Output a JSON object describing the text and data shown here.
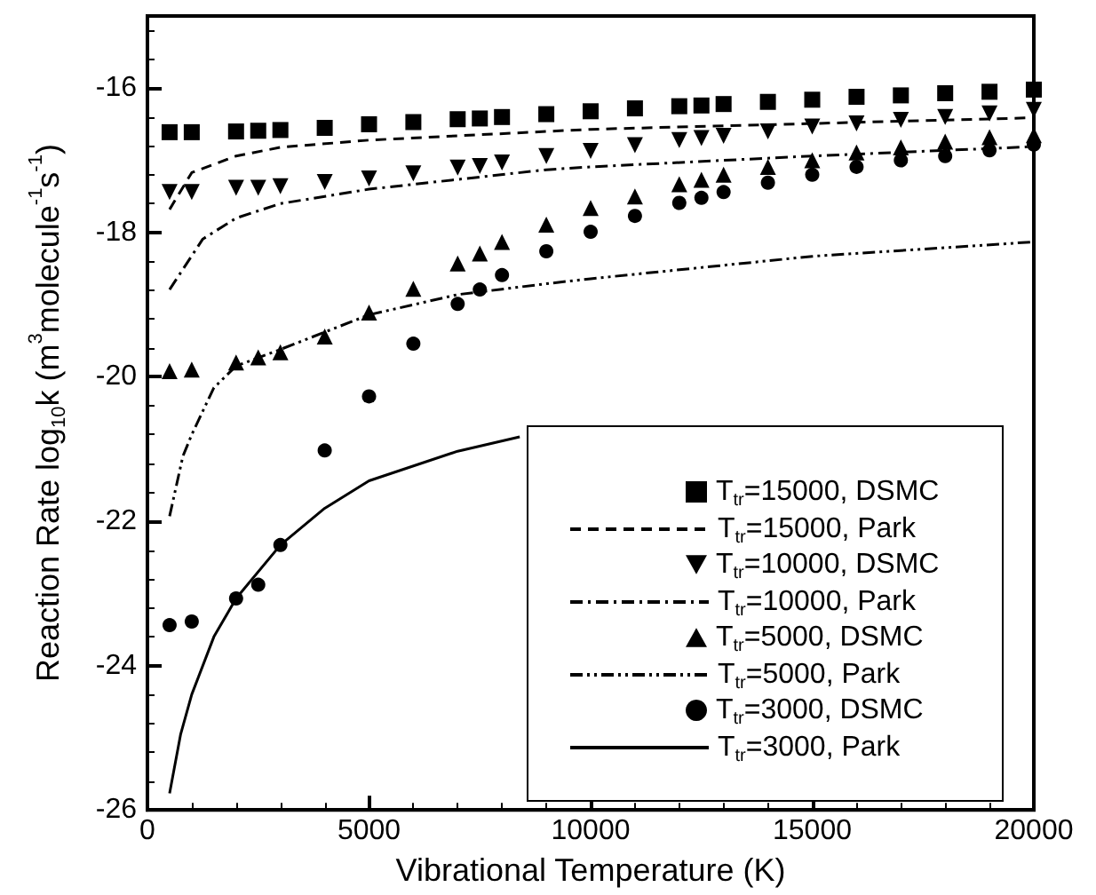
{
  "chart_data": {
    "type": "line",
    "xlabel": "Vibrational Temperature (K)",
    "ylabel": "Reaction Rate log$_{10}$k (m$^{3}$molecule$^{-1}$s$^{-1}$)",
    "xlim": [
      0,
      20000
    ],
    "xticks": [
      0,
      5000,
      10000,
      15000,
      20000
    ],
    "ylim": [
      -26,
      -15
    ],
    "yticks": [
      -26,
      -24,
      -22,
      -20,
      -18,
      -16
    ],
    "grid": false,
    "legend": "bottom right",
    "series": [
      {
        "name": "T$_{tr}$=15000, DSMC",
        "type": "scatter",
        "marker": "square",
        "color": "#000000",
        "x": [
          500,
          1000,
          2000,
          2500,
          3000,
          4000,
          5000,
          6000,
          7000,
          7500,
          8000,
          9000,
          10000,
          11000,
          12000,
          12500,
          13000,
          14000,
          15000,
          16000,
          17000,
          18000,
          19000,
          20000
        ],
        "values": [
          -16.61,
          -16.61,
          -16.6,
          -16.59,
          -16.58,
          -16.55,
          -16.5,
          -16.47,
          -16.43,
          -16.42,
          -16.4,
          -16.36,
          -16.32,
          -16.28,
          -16.25,
          -16.24,
          -16.22,
          -16.19,
          -16.16,
          -16.12,
          -16.1,
          -16.07,
          -16.05,
          -16.02
        ]
      },
      {
        "name": "T$_{tr}$=15000, Park",
        "line_style": "dashed",
        "color": "#000000",
        "x": [
          500,
          1000,
          2000,
          3000,
          5000,
          9000,
          10000,
          15000,
          20000
        ],
        "values": [
          -17.68,
          -17.17,
          -16.94,
          -16.82,
          -16.72,
          -16.6,
          -16.57,
          -16.49,
          -16.41
        ]
      },
      {
        "name": "T$_{tr}$=10000, DSMC",
        "type": "scatter",
        "marker": "triangle-down",
        "color": "#000000",
        "x": [
          500,
          1000,
          2000,
          2500,
          3000,
          4000,
          5000,
          6000,
          7000,
          7500,
          8000,
          9000,
          10000,
          11000,
          12000,
          12500,
          13000,
          14000,
          15000,
          16000,
          17000,
          18000,
          19000,
          20000
        ],
        "values": [
          -17.44,
          -17.44,
          -17.38,
          -17.38,
          -17.36,
          -17.3,
          -17.25,
          -17.18,
          -17.1,
          -17.08,
          -17.03,
          -16.94,
          -16.87,
          -16.79,
          -16.72,
          -16.69,
          -16.66,
          -16.6,
          -16.53,
          -16.49,
          -16.44,
          -16.4,
          -16.35,
          -16.3
        ]
      },
      {
        "name": "T$_{tr}$=10000, Park",
        "line_style": "dashdot",
        "color": "#000000",
        "x": [
          500,
          1250,
          2000,
          3000,
          5000,
          9000,
          10000,
          15000,
          20000
        ],
        "values": [
          -18.79,
          -18.09,
          -17.8,
          -17.6,
          -17.4,
          -17.13,
          -17.09,
          -16.94,
          -16.81
        ]
      },
      {
        "name": "T$_{tr}$=5000, DSMC",
        "type": "scatter",
        "marker": "triangle",
        "color": "#000000",
        "x": [
          500,
          1000,
          2000,
          2500,
          3000,
          4000,
          5000,
          6000,
          7000,
          7500,
          8000,
          9000,
          10000,
          11000,
          12000,
          12500,
          13000,
          14000,
          15000,
          16000,
          17000,
          18000,
          19000,
          20000
        ],
        "values": [
          -19.92,
          -19.9,
          -19.8,
          -19.73,
          -19.66,
          -19.44,
          -19.11,
          -18.78,
          -18.43,
          -18.29,
          -18.13,
          -17.89,
          -17.66,
          -17.5,
          -17.33,
          -17.27,
          -17.2,
          -17.09,
          -17.0,
          -16.89,
          -16.82,
          -16.74,
          -16.68,
          -16.65
        ]
      },
      {
        "name": "T$_{tr}$=5000, Park",
        "line_style": "dashdotdot",
        "color": "#000000",
        "x": [
          500,
          800,
          1000,
          1500,
          2000,
          3000,
          5000,
          7000,
          9000,
          10000,
          15000,
          20000
        ],
        "values": [
          -21.93,
          -21.1,
          -20.8,
          -20.15,
          -19.85,
          -19.62,
          -19.14,
          -18.86,
          -18.71,
          -18.64,
          -18.33,
          -18.13
        ]
      },
      {
        "name": "T$_{tr}$=3000, DSMC",
        "type": "scatter",
        "marker": "circle",
        "color": "#000000",
        "x": [
          500,
          1000,
          2000,
          2500,
          3000,
          4000,
          5000,
          6000,
          7000,
          7500,
          8000,
          9000,
          10000,
          11000,
          12000,
          12500,
          13000,
          14000,
          15000,
          16000,
          17000,
          18000,
          19000,
          20000
        ],
        "values": [
          -23.44,
          -23.39,
          -23.07,
          -22.88,
          -22.33,
          -21.02,
          -20.27,
          -19.54,
          -18.99,
          -18.79,
          -18.59,
          -18.26,
          -17.99,
          -17.77,
          -17.59,
          -17.52,
          -17.44,
          -17.31,
          -17.2,
          -17.09,
          -17.0,
          -16.94,
          -16.86,
          -16.78
        ]
      },
      {
        "name": "T$_{tr}$=3000, Park",
        "line_style": "solid",
        "color": "#000000",
        "x": [
          500,
          750,
          1000,
          1500,
          2000,
          3000,
          4000,
          5000,
          7000,
          8400
        ],
        "values": [
          -25.77,
          -24.95,
          -24.4,
          -23.6,
          -23.07,
          -22.33,
          -21.82,
          -21.44,
          -21.03,
          -20.83
        ]
      }
    ]
  }
}
